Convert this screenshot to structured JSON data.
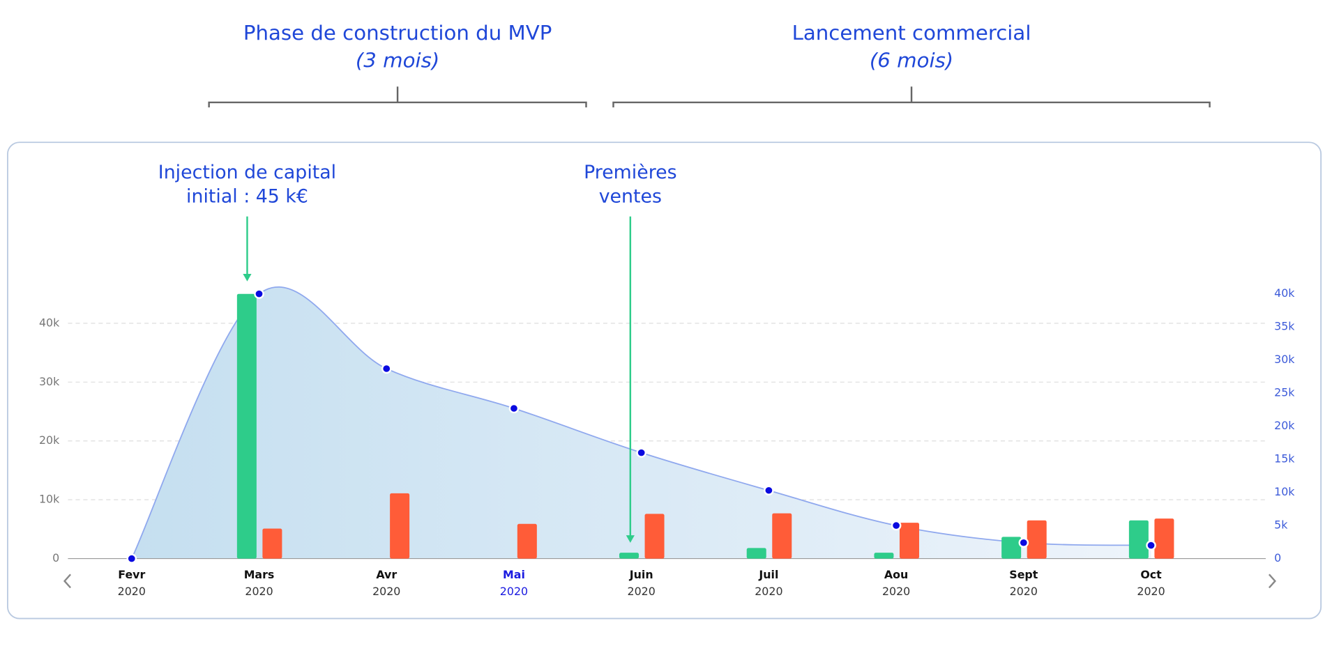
{
  "header": {
    "phases": [
      {
        "title": "Phase de construction du MVP",
        "duration": "(3 mois)"
      },
      {
        "title": "Lancement commercial",
        "duration": "(6 mois)"
      }
    ]
  },
  "chart_data": {
    "type": "combo",
    "annotations": [
      {
        "lines": [
          "Injection de capital",
          "initial : 45 k€"
        ]
      },
      {
        "lines": [
          "Premières",
          "ventes"
        ]
      }
    ],
    "categories": [
      "Fevr",
      "Mars",
      "Avr",
      "Mai",
      "Juin",
      "Juil",
      "Aou",
      "Sept",
      "Oct"
    ],
    "category_years": [
      "2020",
      "2020",
      "2020",
      "2020",
      "2020",
      "2020",
      "2020",
      "2020",
      "2020"
    ],
    "selected_category": 3,
    "ylim": [
      0,
      45000
    ],
    "yticks": [
      0,
      {
        "value": 10000,
        "label": "10k"
      },
      {
        "value": 20000,
        "label": "20k"
      },
      {
        "value": 30000,
        "label": "30k"
      },
      {
        "value": 40000,
        "label": "40k"
      }
    ],
    "y2lim": [
      0,
      40000
    ],
    "y2ticks": [
      0,
      {
        "value": 5000,
        "label": "5k"
      },
      {
        "value": 10000,
        "label": "10k"
      },
      {
        "value": 15000,
        "label": "15k"
      },
      {
        "value": 20000,
        "label": "20k"
      },
      {
        "value": 25000,
        "label": "25k"
      },
      {
        "value": 30000,
        "label": "30k"
      },
      {
        "value": 35000,
        "label": "35k"
      },
      {
        "value": 40000,
        "label": "40k"
      }
    ],
    "grid": true,
    "series": [
      {
        "type": "bar",
        "color": "#2ecc8a",
        "values": [
          0,
          45000,
          0,
          0,
          1000,
          1800,
          1000,
          3700,
          6500
        ]
      },
      {
        "type": "bar",
        "color": "#ff5c38",
        "values": [
          0,
          5100,
          11100,
          5900,
          7600,
          7700,
          6100,
          6500,
          6800
        ]
      },
      {
        "type": "area",
        "color": "#8fa8ee",
        "axis": "y2",
        "values": [
          0,
          40000,
          28700,
          22700,
          16000,
          10300,
          5000,
          2400,
          2000
        ]
      }
    ]
  }
}
